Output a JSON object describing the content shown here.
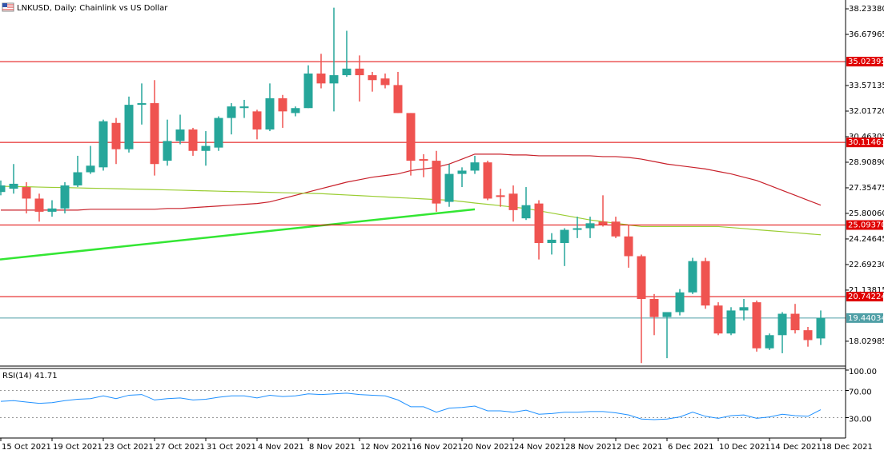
{
  "chart_data": [
    {
      "type": "candlestick",
      "title": "LNKUSD, Daily:  Chainlink vs US Dollar",
      "categories": [
        "15 Oct 2021",
        null,
        null,
        null,
        "19 Oct 2021",
        null,
        null,
        null,
        "23 Oct 2021",
        null,
        null,
        null,
        "27 Oct 2021",
        null,
        null,
        null,
        "31 Oct 2021",
        null,
        null,
        null,
        "4 Nov 2021",
        null,
        null,
        null,
        "8 Nov 2021",
        null,
        null,
        null,
        "12 Nov 2021",
        null,
        null,
        null,
        "16 Nov 2021",
        null,
        null,
        null,
        "20 Nov 2021",
        null,
        null,
        null,
        "24 Nov 2021",
        null,
        null,
        null,
        "28 Nov 2021",
        null,
        null,
        null,
        "2 Dec 2021",
        null,
        null,
        null,
        "6 Dec 2021",
        null,
        null,
        null,
        "10 Dec 2021",
        null,
        null,
        null,
        "14 Dec 2021",
        null,
        null,
        null,
        "18 Dec 2021"
      ],
      "open": [
        27.1,
        27.3,
        27.4,
        26.7,
        25.9,
        26.1,
        27.5,
        28.3,
        28.6,
        31.3,
        29.7,
        32.4,
        32.5,
        29.0,
        30.2,
        30.9,
        29.6,
        29.8,
        31.6,
        32.2,
        32.0,
        30.9,
        32.8,
        31.9,
        32.2,
        34.3,
        33.7,
        34.2,
        34.6,
        34.2,
        34.0,
        33.6,
        31.9,
        29.1,
        29.0,
        26.5,
        28.2,
        28.4,
        28.9,
        26.9,
        27.0,
        25.5,
        26.4,
        24.0,
        24.0,
        24.8,
        24.9,
        25.3,
        25.3,
        24.4,
        23.2,
        20.6,
        19.5,
        19.8,
        21.0,
        22.9,
        20.2,
        18.5,
        19.9,
        20.4,
        17.6,
        18.4,
        19.7,
        18.7,
        18.2
      ],
      "high": [
        27.8,
        28.8,
        27.7,
        27.0,
        26.6,
        27.7,
        29.3,
        29.9,
        31.5,
        31.6,
        32.9,
        33.7,
        33.9,
        31.5,
        31.8,
        31.0,
        30.8,
        31.7,
        32.5,
        32.7,
        32.1,
        33.7,
        33.0,
        32.3,
        34.8,
        35.5,
        38.3,
        36.9,
        35.4,
        34.4,
        34.3,
        34.4,
        31.9,
        29.4,
        29.6,
        28.8,
        28.6,
        29.3,
        29.0,
        27.3,
        27.5,
        27.4,
        26.6,
        24.6,
        24.9,
        25.6,
        25.6,
        26.9,
        25.6,
        25.1,
        23.3,
        20.9,
        19.8,
        21.2,
        23.1,
        23.1,
        20.4,
        20.1,
        20.6,
        20.5,
        18.5,
        19.8,
        20.3,
        18.9,
        19.9
      ],
      "low": [
        26.9,
        27.0,
        25.8,
        25.3,
        25.6,
        25.8,
        27.4,
        28.2,
        28.4,
        28.8,
        29.5,
        31.2,
        28.1,
        28.7,
        30.0,
        29.3,
        28.7,
        29.6,
        30.6,
        31.6,
        30.3,
        30.8,
        31.0,
        31.7,
        32.2,
        33.4,
        32.0,
        34.1,
        32.6,
        33.2,
        33.4,
        31.9,
        28.1,
        28.0,
        25.9,
        26.2,
        27.4,
        28.2,
        26.6,
        26.2,
        25.3,
        25.4,
        23.0,
        23.3,
        22.6,
        24.3,
        24.3,
        25.0,
        24.3,
        22.5,
        16.7,
        18.4,
        17.0,
        19.6,
        20.9,
        20.0,
        18.4,
        18.4,
        19.3,
        17.4,
        17.5,
        17.3,
        18.5,
        17.7,
        17.8
      ],
      "close": [
        27.5,
        27.6,
        26.7,
        25.9,
        26.1,
        27.5,
        28.3,
        28.7,
        31.4,
        29.7,
        32.4,
        32.5,
        28.8,
        30.2,
        30.9,
        29.6,
        29.9,
        31.6,
        32.3,
        32.3,
        30.9,
        32.8,
        32.0,
        32.2,
        34.3,
        33.7,
        34.2,
        34.6,
        34.2,
        33.9,
        33.6,
        31.9,
        29.0,
        29.0,
        26.4,
        28.2,
        28.4,
        28.9,
        26.7,
        26.8,
        26.0,
        26.3,
        24.0,
        24.2,
        24.8,
        24.9,
        25.2,
        25.1,
        24.4,
        23.2,
        20.6,
        19.5,
        19.8,
        21.0,
        22.9,
        20.2,
        18.5,
        19.9,
        20.1,
        17.6,
        18.4,
        19.7,
        18.7,
        18.1,
        19.44
      ],
      "up_color": "#26a69a",
      "down_color": "#ef5350",
      "ylim": [
        16.52,
        38.77
      ],
      "yticks": [
        {
          "value": 38.2338,
          "label": "38.23380"
        },
        {
          "value": 36.67965,
          "label": "36.67965"
        },
        {
          "value": 33.57135,
          "label": "33.57135"
        },
        {
          "value": 32.0172,
          "label": "32.01720"
        },
        {
          "value": 30.46305,
          "label": "30.46305"
        },
        {
          "value": 28.9089,
          "label": "28.90890"
        },
        {
          "value": 27.35475,
          "label": "27.35475"
        },
        {
          "value": 25.8006,
          "label": "25.80060"
        },
        {
          "value": 24.24645,
          "label": "24.24645"
        },
        {
          "value": 22.6923,
          "label": "22.69230"
        },
        {
          "value": 21.13815,
          "label": "21.13815"
        },
        {
          "value": 18.02985,
          "label": "18.02985"
        }
      ],
      "hlines": [
        {
          "value": 35.02395,
          "label": "35.02395",
          "color": "#e00000"
        },
        {
          "value": 30.11461,
          "label": "30.11461",
          "color": "#e00000"
        },
        {
          "value": 25.0937,
          "label": "25.09370",
          "color": "#e00000"
        },
        {
          "value": 20.74224,
          "label": "20.74224",
          "color": "#e00000"
        },
        {
          "value": 19.44034,
          "label": "19.44034",
          "color": "#4f9fa6"
        }
      ],
      "series": [
        {
          "color": "#c8202a",
          "values": [
            26.0,
            26.0,
            26.0,
            26.0,
            26.0,
            26.0,
            26.0,
            26.05,
            26.05,
            26.05,
            26.05,
            26.05,
            26.05,
            26.1,
            26.1,
            26.15,
            26.2,
            26.25,
            26.3,
            26.35,
            26.4,
            26.5,
            26.7,
            26.9,
            27.1,
            27.3,
            27.5,
            27.7,
            27.85,
            28.0,
            28.1,
            28.2,
            28.4,
            28.5,
            28.6,
            28.8,
            29.1,
            29.4,
            29.4,
            29.4,
            29.35,
            29.35,
            29.3,
            29.3,
            29.3,
            29.3,
            29.3,
            29.25,
            29.25,
            29.2,
            29.1,
            28.95,
            28.8,
            28.7,
            28.6,
            28.5,
            28.35,
            28.2,
            28.0,
            27.8,
            27.5,
            27.2,
            26.9,
            26.6,
            26.3
          ]
        },
        {
          "color": "#9acd32",
          "values": [
            27.45,
            27.43,
            27.42,
            27.4,
            27.38,
            27.37,
            27.35,
            27.33,
            27.32,
            27.3,
            27.28,
            27.27,
            27.25,
            27.23,
            27.21,
            27.19,
            27.17,
            27.15,
            27.13,
            27.12,
            27.1,
            27.08,
            27.06,
            27.04,
            27.02,
            27.0,
            26.96,
            26.92,
            26.88,
            26.84,
            26.8,
            26.76,
            26.72,
            26.68,
            26.64,
            26.6,
            26.52,
            26.43,
            26.35,
            26.27,
            26.18,
            26.1,
            25.96,
            25.82,
            25.68,
            25.54,
            25.4,
            25.3,
            25.2,
            25.1,
            25.0,
            25.0,
            25.0,
            25.0,
            25.0,
            25.0,
            25.0,
            24.94,
            24.88,
            24.81,
            24.75,
            24.69,
            24.63,
            24.56,
            24.5
          ]
        }
      ],
      "trendline": {
        "x": [
          0,
          37
        ],
        "values": [
          23.0,
          26.05
        ],
        "color": "#33e633"
      }
    },
    {
      "type": "line",
      "title": "RSI(14) 41.71",
      "color": "#1e90ff",
      "values": [
        54,
        55,
        53,
        51,
        52,
        55,
        57,
        58,
        62,
        58,
        63,
        64,
        56,
        58,
        59,
        56,
        57,
        60,
        62,
        62,
        59,
        63,
        61,
        62,
        65,
        64,
        65,
        66,
        64,
        63,
        62,
        56,
        46,
        46,
        38,
        44,
        45,
        47,
        40,
        40,
        38,
        41,
        35,
        36,
        38,
        38,
        39,
        39,
        37,
        34,
        28,
        27,
        28,
        31,
        38,
        32,
        29,
        33,
        34,
        29,
        31,
        35,
        33,
        32,
        41.71
      ],
      "ylim": [
        0,
        100
      ],
      "yticks": [
        {
          "value": 100,
          "label": "100.00"
        },
        {
          "value": 70,
          "label": "70.00"
        },
        {
          "value": 30,
          "label": "30.00"
        }
      ],
      "grid": true
    }
  ]
}
